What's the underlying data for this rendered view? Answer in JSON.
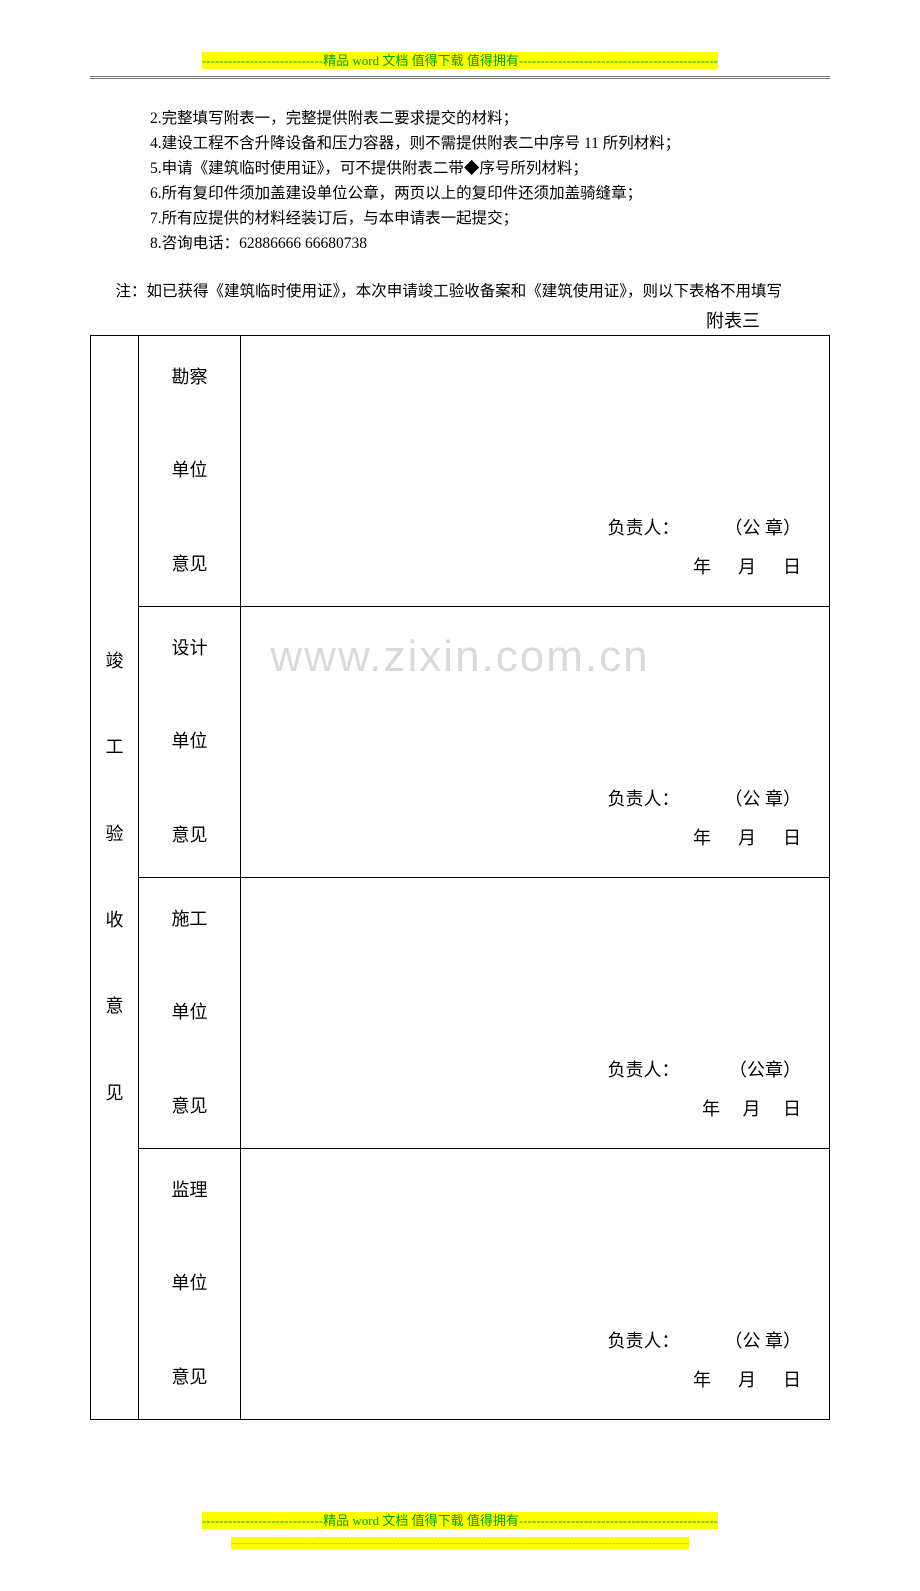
{
  "header": {
    "banner_text": "----------------------------精品 word 文档  值得下载  值得拥有----------------------------------------------"
  },
  "list": {
    "items": [
      "2.完整填写附表一，完整提供附表二要求提交的材料；",
      "4.建设工程不含升降设备和压力容器，则不需提供附表二中序号 11 所列材料；",
      "5.申请《建筑临时使用证》，可不提供附表二带◆序号所列材料；",
      "6.所有复印件须加盖建设单位公章，两页以上的复印件还须加盖骑缝章；",
      "7.所有应提供的材料经装订后，与本申请表一起提交；",
      "8.咨询电话：62886666   66680738"
    ]
  },
  "note": "　注：如已获得《建筑临时使用证》，本次申请竣工验收备案和《建筑使用证》，则以下表格不用填写",
  "table": {
    "caption": "附表三",
    "main_label": "竣\n\n工\n\n验\n\n收\n\n意\n\n见",
    "rows": [
      {
        "sub_label": "勘察\n\n单位\n\n意见",
        "sig_line1": "负责人：          （公 章）",
        "sig_line2": "年      月      日"
      },
      {
        "sub_label": "设计\n\n单位\n\n意见",
        "sig_line1": "负责人：          （公 章）",
        "sig_line2": "年      月      日"
      },
      {
        "sub_label": "施工\n\n单位\n\n意见",
        "sig_line1": "负责人：           （公章）",
        "sig_line2": "年     月     日"
      },
      {
        "sub_label": "监理\n\n单位\n\n意见",
        "sig_line1": "负责人：          （公 章）",
        "sig_line2": "年      月      日"
      }
    ]
  },
  "watermark": "www.zixin.com.cn",
  "footer": {
    "banner_text": "----------------------------精品 word 文档  值得下载  值得拥有----------------------------------------------",
    "yellow_line": "-----------------------------------------------------------------------------------------------------------------------------"
  }
}
